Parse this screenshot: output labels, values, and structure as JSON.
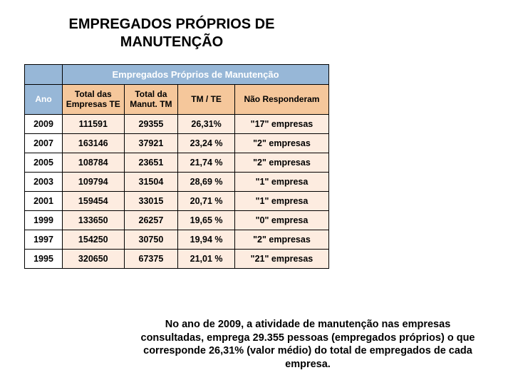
{
  "title": "EMPREGADOS PRÓPRIOS DE MANUTENÇÃO",
  "table": {
    "header_main": "Empregados Próprios de Manutenção",
    "col_year": "Ano",
    "columns": [
      {
        "label": "Total das Empresas TE"
      },
      {
        "label": "Total da Manut. TM"
      },
      {
        "label": "TM / TE"
      },
      {
        "label": "Não Responderam"
      }
    ],
    "rows": [
      {
        "year": "2009",
        "te": "111591",
        "tm": "29355",
        "ratio": "26,31%",
        "nr": "\"17\" empresas"
      },
      {
        "year": "2007",
        "te": "163146",
        "tm": "37921",
        "ratio": "23,24 %",
        "nr": "\"2\" empresas"
      },
      {
        "year": "2005",
        "te": "108784",
        "tm": "23651",
        "ratio": "21,74 %",
        "nr": "\"2\" empresas"
      },
      {
        "year": "2003",
        "te": "109794",
        "tm": "31504",
        "ratio": "28,69 %",
        "nr": "\"1\" empresa"
      },
      {
        "year": "2001",
        "te": "159454",
        "tm": "33015",
        "ratio": "20,71 %",
        "nr": "\"1\" empresa"
      },
      {
        "year": "1999",
        "te": "133650",
        "tm": "26257",
        "ratio": "19,65 %",
        "nr": "\"0\" empresa"
      },
      {
        "year": "1997",
        "te": "154250",
        "tm": "30750",
        "ratio": "19,94 %",
        "nr": "\"2\" empresas"
      },
      {
        "year": "1995",
        "te": "320650",
        "tm": "67375",
        "ratio": "21,01 %",
        "nr": "\"21\" empresas"
      }
    ],
    "colors": {
      "header_blue": "#97b7d7",
      "header_text": "#ffffff",
      "subheader_orange": "#f5c79b",
      "body_bg": "#fdece0",
      "year_bg": "#ffffff",
      "border": "#000000"
    },
    "fontsize_body_pt": 12.5,
    "fontsize_header_pt": 13
  },
  "caption": "No ano de 2009, a atividade de manutenção nas empresas consultadas, emprega 29.355 pessoas (empregados próprios) o que corresponde 26,31% (valor médio) do total de empregados de cada empresa."
}
